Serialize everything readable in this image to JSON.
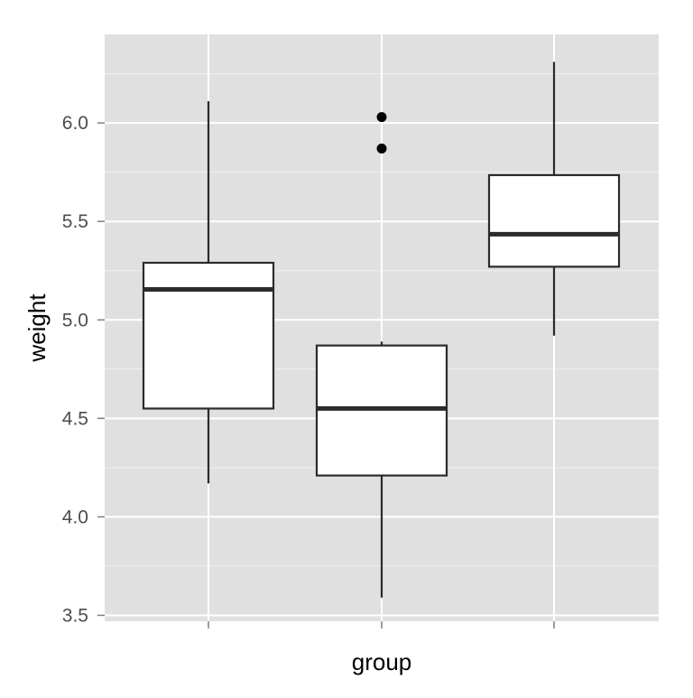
{
  "chart_data": {
    "type": "boxplot",
    "xlabel": "group",
    "ylabel": "weight",
    "ylim": [
      3.47,
      6.45
    ],
    "y_ticks": [
      3.5,
      4.0,
      4.5,
      5.0,
      5.5,
      6.0
    ],
    "y_tick_labels": [
      "3.5",
      "4.0",
      "4.5",
      "5.0",
      "5.5",
      "6.0"
    ],
    "categories": [
      "",
      "",
      ""
    ],
    "boxes": [
      {
        "whisker_low": 4.17,
        "q1": 4.55,
        "median": 5.155,
        "q3": 5.29,
        "whisker_high": 6.11,
        "outliers": []
      },
      {
        "whisker_low": 3.59,
        "q1": 4.21,
        "median": 4.55,
        "q3": 4.87,
        "whisker_high": 4.89,
        "outliers": [
          5.87,
          6.03
        ]
      },
      {
        "whisker_low": 4.92,
        "q1": 5.27,
        "median": 5.435,
        "q3": 5.735,
        "whisker_high": 6.31,
        "outliers": []
      }
    ],
    "grid": true,
    "panel_background": "#e0e0e0",
    "grid_color": "#ffffff",
    "box_fill": "#ffffff",
    "box_stroke": "#2b2b2b"
  }
}
